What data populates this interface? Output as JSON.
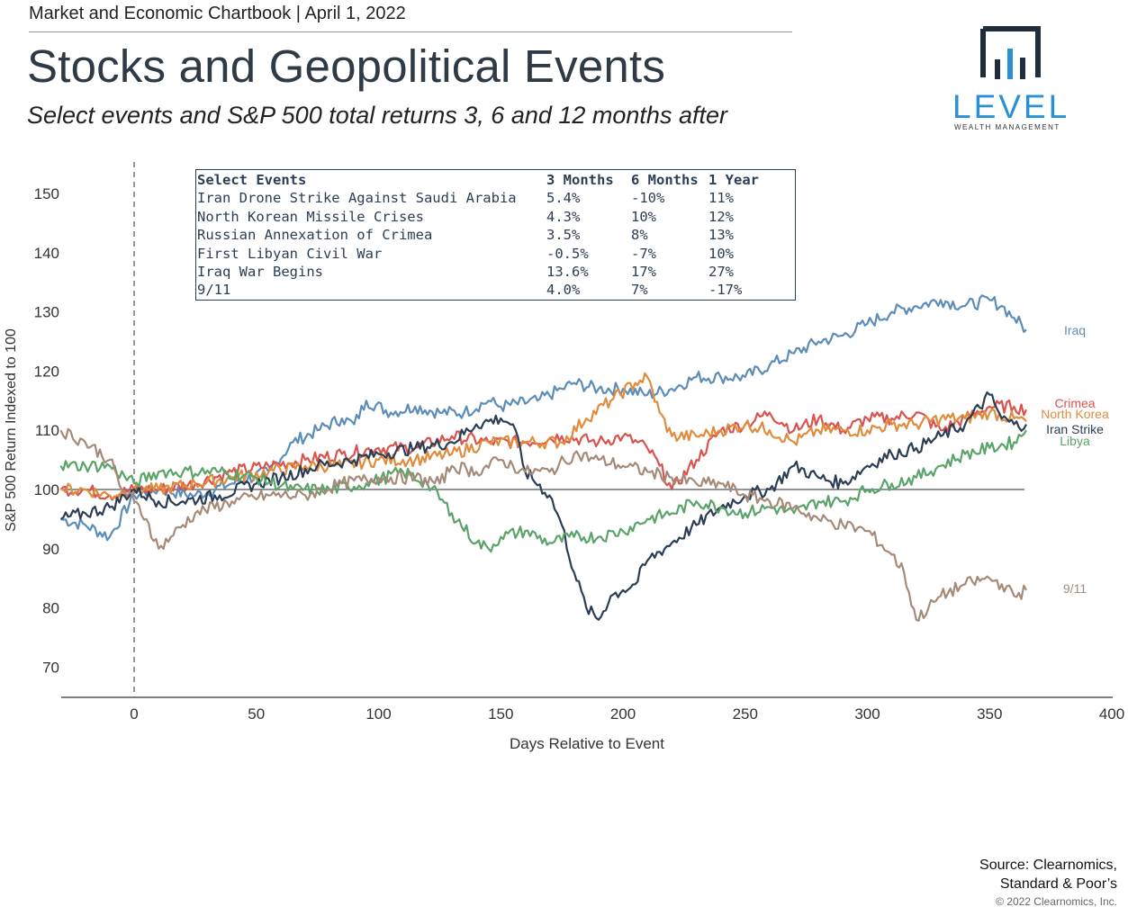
{
  "header": {
    "chartbook": "Market and Economic Chartbook | April 1, 2022",
    "title": "Stocks and Geopolitical Events",
    "subtitle": "Select events and S&P 500 total returns 3, 6 and 12 months after"
  },
  "logo": {
    "word": "LEVEL",
    "tagline": "WEALTH MANAGEMENT",
    "color": "#2a8fd4",
    "mark_color": "#1f2d3d"
  },
  "table": {
    "headers": [
      "Select Events",
      "3 Months",
      "6 Months",
      "1 Year"
    ],
    "rows": [
      [
        "Iran Drone Strike Against Saudi Arabia",
        "5.4%",
        "-10%",
        "11%"
      ],
      [
        "North Korean Missile Crises",
        "4.3%",
        "10%",
        "12%"
      ],
      [
        "Russian Annexation of Crimea",
        "3.5%",
        "8%",
        "13%"
      ],
      [
        "First Libyan Civil War",
        "-0.5%",
        "-7%",
        "10%"
      ],
      [
        "Iraq War Begins",
        "13.6%",
        "17%",
        "27%"
      ],
      [
        "9/11",
        "4.0%",
        "7%",
        "-17%"
      ]
    ]
  },
  "chart_data": {
    "type": "line",
    "xlabel": "Days Relative to Event",
    "ylabel": "S&P 500 Return Indexed to 100",
    "xlim": [
      -30,
      400
    ],
    "ylim": [
      65,
      155
    ],
    "xticks": [
      0,
      50,
      100,
      150,
      200,
      250,
      300,
      350,
      400
    ],
    "yticks": [
      70,
      80,
      90,
      100,
      110,
      120,
      130,
      140,
      150
    ],
    "reference_line_y": 100,
    "event_line_x": 0,
    "grid": false,
    "series": [
      {
        "name": "Iraq",
        "color": "#5b8db8",
        "label_value": 127.5,
        "points": [
          [
            -30,
            95
          ],
          [
            -20,
            94
          ],
          [
            -10,
            92
          ],
          [
            0,
            99
          ],
          [
            10,
            100
          ],
          [
            25,
            99
          ],
          [
            40,
            101
          ],
          [
            55,
            103
          ],
          [
            65,
            108
          ],
          [
            75,
            110
          ],
          [
            85,
            112
          ],
          [
            90,
            111
          ],
          [
            95,
            115
          ],
          [
            105,
            113
          ],
          [
            115,
            114
          ],
          [
            125,
            113
          ],
          [
            135,
            113
          ],
          [
            145,
            115
          ],
          [
            150,
            114
          ],
          [
            165,
            115
          ],
          [
            175,
            117
          ],
          [
            180,
            118
          ],
          [
            190,
            117
          ],
          [
            200,
            117
          ],
          [
            210,
            116
          ],
          [
            220,
            117
          ],
          [
            230,
            119
          ],
          [
            240,
            119
          ],
          [
            250,
            119
          ],
          [
            260,
            121
          ],
          [
            270,
            123
          ],
          [
            280,
            125
          ],
          [
            290,
            126
          ],
          [
            300,
            128
          ],
          [
            310,
            130
          ],
          [
            320,
            131
          ],
          [
            330,
            132
          ],
          [
            340,
            131
          ],
          [
            350,
            132
          ],
          [
            355,
            131
          ],
          [
            360,
            129
          ],
          [
            365,
            127
          ]
        ]
      },
      {
        "name": "Crimea",
        "color": "#d9534f",
        "label_value": 113.5,
        "points": [
          [
            -30,
            100
          ],
          [
            -20,
            100
          ],
          [
            -10,
            99
          ],
          [
            0,
            100
          ],
          [
            10,
            100
          ],
          [
            25,
            101
          ],
          [
            40,
            103
          ],
          [
            55,
            104
          ],
          [
            70,
            105
          ],
          [
            85,
            106
          ],
          [
            100,
            107
          ],
          [
            115,
            107
          ],
          [
            130,
            109
          ],
          [
            145,
            108
          ],
          [
            160,
            108
          ],
          [
            175,
            109
          ],
          [
            190,
            108
          ],
          [
            200,
            109
          ],
          [
            210,
            107
          ],
          [
            215,
            104
          ],
          [
            220,
            100
          ],
          [
            230,
            105
          ],
          [
            240,
            110
          ],
          [
            250,
            111
          ],
          [
            260,
            113
          ],
          [
            270,
            110
          ],
          [
            280,
            112
          ],
          [
            290,
            110
          ],
          [
            300,
            112
          ],
          [
            310,
            112
          ],
          [
            320,
            113
          ],
          [
            330,
            110
          ],
          [
            340,
            112
          ],
          [
            350,
            114
          ],
          [
            360,
            114
          ],
          [
            365,
            113.5
          ]
        ]
      },
      {
        "name": "North Korea",
        "color": "#e08c3c",
        "label_value": 111.5,
        "points": [
          [
            -30,
            100
          ],
          [
            -20,
            100
          ],
          [
            -10,
            99
          ],
          [
            0,
            100
          ],
          [
            10,
            100
          ],
          [
            25,
            101
          ],
          [
            40,
            102
          ],
          [
            55,
            103
          ],
          [
            70,
            104
          ],
          [
            85,
            104
          ],
          [
            100,
            105
          ],
          [
            115,
            105
          ],
          [
            130,
            106
          ],
          [
            145,
            108
          ],
          [
            160,
            108
          ],
          [
            175,
            108
          ],
          [
            185,
            112
          ],
          [
            195,
            115
          ],
          [
            205,
            118
          ],
          [
            210,
            119
          ],
          [
            215,
            113
          ],
          [
            220,
            109
          ],
          [
            230,
            109
          ],
          [
            240,
            110
          ],
          [
            250,
            111
          ],
          [
            260,
            110
          ],
          [
            270,
            108
          ],
          [
            280,
            110
          ],
          [
            290,
            110
          ],
          [
            300,
            110
          ],
          [
            310,
            111
          ],
          [
            320,
            111
          ],
          [
            330,
            112
          ],
          [
            340,
            112
          ],
          [
            350,
            113
          ],
          [
            360,
            112
          ],
          [
            365,
            111.5
          ]
        ]
      },
      {
        "name": "Iran Strike",
        "color": "#2c3e55",
        "label_value": 111,
        "points": [
          [
            -30,
            95
          ],
          [
            -20,
            96
          ],
          [
            -10,
            97
          ],
          [
            0,
            100
          ],
          [
            10,
            98
          ],
          [
            20,
            98
          ],
          [
            35,
            99
          ],
          [
            50,
            101
          ],
          [
            60,
            102
          ],
          [
            75,
            104
          ],
          [
            90,
            105
          ],
          [
            100,
            106
          ],
          [
            115,
            107
          ],
          [
            130,
            108
          ],
          [
            140,
            111
          ],
          [
            150,
            112
          ],
          [
            155,
            111
          ],
          [
            160,
            103
          ],
          [
            170,
            99
          ],
          [
            175,
            94
          ],
          [
            180,
            86
          ],
          [
            185,
            80
          ],
          [
            190,
            78
          ],
          [
            195,
            82
          ],
          [
            200,
            83
          ],
          [
            205,
            84
          ],
          [
            210,
            88
          ],
          [
            220,
            91
          ],
          [
            230,
            94
          ],
          [
            240,
            97
          ],
          [
            250,
            99
          ],
          [
            260,
            100
          ],
          [
            270,
            104
          ],
          [
            280,
            102
          ],
          [
            290,
            101
          ],
          [
            300,
            104
          ],
          [
            310,
            106
          ],
          [
            320,
            107
          ],
          [
            330,
            109
          ],
          [
            340,
            111
          ],
          [
            350,
            116
          ],
          [
            355,
            112
          ],
          [
            360,
            111
          ],
          [
            365,
            111
          ]
        ]
      },
      {
        "name": "Libya",
        "color": "#5aa469",
        "label_value": 110,
        "points": [
          [
            -30,
            104
          ],
          [
            -20,
            104
          ],
          [
            -10,
            104
          ],
          [
            0,
            101
          ],
          [
            10,
            103
          ],
          [
            20,
            103
          ],
          [
            35,
            103
          ],
          [
            50,
            102
          ],
          [
            65,
            100
          ],
          [
            80,
            100
          ],
          [
            95,
            101
          ],
          [
            110,
            103
          ],
          [
            120,
            101
          ],
          [
            130,
            96
          ],
          [
            140,
            91
          ],
          [
            145,
            90
          ],
          [
            150,
            92
          ],
          [
            160,
            93
          ],
          [
            170,
            91
          ],
          [
            180,
            92
          ],
          [
            190,
            92
          ],
          [
            200,
            93
          ],
          [
            210,
            95
          ],
          [
            220,
            96
          ],
          [
            230,
            98
          ],
          [
            240,
            97
          ],
          [
            250,
            96
          ],
          [
            260,
            97
          ],
          [
            270,
            96
          ],
          [
            280,
            98
          ],
          [
            290,
            98
          ],
          [
            300,
            100
          ],
          [
            310,
            101
          ],
          [
            320,
            102
          ],
          [
            330,
            104
          ],
          [
            340,
            106
          ],
          [
            350,
            107
          ],
          [
            360,
            108
          ],
          [
            365,
            110
          ]
        ]
      },
      {
        "name": "9/11",
        "color": "#a68a78",
        "label_value": 84,
        "points": [
          [
            -30,
            110
          ],
          [
            -20,
            108
          ],
          [
            -10,
            105
          ],
          [
            -5,
            100
          ],
          [
            0,
            98
          ],
          [
            5,
            95
          ],
          [
            10,
            90
          ],
          [
            15,
            92
          ],
          [
            25,
            96
          ],
          [
            40,
            98
          ],
          [
            55,
            99
          ],
          [
            70,
            99
          ],
          [
            85,
            101
          ],
          [
            100,
            102
          ],
          [
            115,
            102
          ],
          [
            125,
            101
          ],
          [
            130,
            104
          ],
          [
            140,
            103
          ],
          [
            150,
            105
          ],
          [
            160,
            103
          ],
          [
            170,
            103
          ],
          [
            180,
            106
          ],
          [
            190,
            105
          ],
          [
            200,
            104
          ],
          [
            210,
            103
          ],
          [
            220,
            102
          ],
          [
            230,
            101
          ],
          [
            240,
            101
          ],
          [
            250,
            99
          ],
          [
            260,
            98
          ],
          [
            270,
            97
          ],
          [
            280,
            95
          ],
          [
            290,
            94
          ],
          [
            300,
            93
          ],
          [
            310,
            89
          ],
          [
            315,
            86
          ],
          [
            320,
            78
          ],
          [
            330,
            82
          ],
          [
            340,
            84
          ],
          [
            350,
            85
          ],
          [
            355,
            84
          ],
          [
            360,
            82
          ],
          [
            365,
            83
          ]
        ]
      }
    ]
  },
  "source": {
    "line1": "Source: Clearnomics,",
    "line2": "Standard & Poor’s",
    "copyright": "© 2022 Clearnomics, Inc."
  }
}
